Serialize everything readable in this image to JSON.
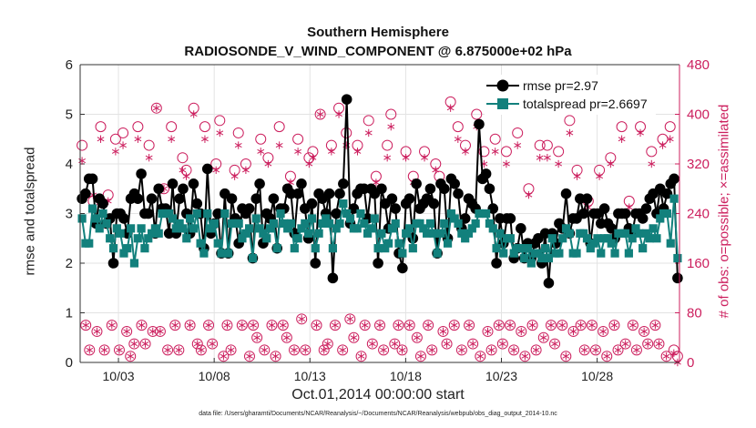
{
  "chart_data": {
    "type": "line",
    "title": "Southern Hemisphere",
    "subtitle": "RADIOSONDE_V_WIND_COMPONENT @ 6.875000e+02 hPa",
    "xlabel": "Oct.01,2014 00:00:00 start",
    "ylabel_left": "rmse and totalspread",
    "ylabel_right": "# of obs: o=possible; ×=assimilated",
    "footnote": "data file: /Users/gharamti/Documents/NCAR/Reanalysis/~/Documents/NCAR/Reanalysis/webpub/obs_diag_output_2014-10.nc",
    "x_ticks": [
      "10/03",
      "10/08",
      "10/13",
      "10/18",
      "10/23",
      "10/28"
    ],
    "x_tick_days": [
      3,
      8,
      13,
      18,
      23,
      28
    ],
    "xlim": [
      1,
      32.3
    ],
    "ylim_left": [
      0,
      6
    ],
    "yticks_left": [
      0,
      1,
      2,
      3,
      4,
      5,
      6
    ],
    "ylim_right": [
      0,
      480
    ],
    "yticks_right": [
      0,
      80,
      160,
      240,
      320,
      400,
      480
    ],
    "series": [
      {
        "name": "rmse pr=2.97",
        "axis": "left",
        "color": "#000000",
        "marker": "circle",
        "values": [
          3.3,
          3.4,
          3.7,
          3.7,
          2.8,
          3.3,
          3.2,
          2.8,
          2.9,
          2.0,
          3.0,
          3.0,
          2.9,
          2.6,
          3.3,
          3.4,
          3.3,
          3.8,
          3.0,
          3.0,
          3.3,
          2.6,
          3.5,
          3.1,
          3.1,
          2.6,
          3.6,
          2.6,
          3.3,
          3.5,
          3.0,
          2.6,
          3.6,
          3.2,
          3.0,
          2.3,
          3.9,
          2.6,
          2.8,
          3.0,
          2.2,
          3.4,
          2.2,
          3.3,
          2.9,
          2.4,
          3.1,
          3.0,
          3.1,
          2.1,
          3.3,
          3.6,
          2.4,
          3.0,
          2.9,
          3.3,
          2.3,
          3.1,
          3.1,
          3.5,
          3.4,
          2.6,
          3.4,
          3.6,
          3.1,
          2.5,
          3.2,
          2.0,
          3.4,
          3.3,
          3.0,
          3.4,
          1.7,
          3.0,
          3.4,
          3.6,
          5.3,
          2.8,
          3.1,
          3.4,
          3.5,
          3.5,
          2.9,
          3.5,
          3.4,
          2.0,
          3.5,
          3.2,
          2.7,
          3.3,
          3.1,
          2.2,
          1.9,
          3.2,
          3.3,
          2.5,
          3.6,
          3.1,
          3.2,
          3.3,
          3.5,
          3.2,
          2.2,
          3.6,
          3.5,
          2.5,
          3.7,
          3.6,
          3.4,
          2.7,
          2.9,
          3.3,
          3.2,
          3.1,
          4.8,
          3.7,
          3.8,
          3.5,
          3.1,
          2.0,
          2.9,
          2.4,
          2.9,
          2.9,
          2.1,
          2.3,
          2.7,
          2.1,
          2.4,
          2.1,
          2.4,
          2.5,
          2.0,
          2.6,
          1.6,
          2.6,
          2.4,
          2.8,
          2.7,
          3.4,
          2.6,
          2.9,
          2.9,
          3.3,
          3.0,
          3.3,
          2.4,
          3.0,
          3.0,
          2.8,
          3.1,
          2.8,
          2.7,
          2.5,
          3.0,
          3.0,
          3.0,
          2.7,
          2.6,
          3.0,
          3.0,
          2.9,
          3.1,
          3.3,
          3.4,
          3.0,
          3.5,
          3.1,
          3.4,
          3.6,
          3.7,
          1.7
        ]
      },
      {
        "name": "totalspread pr=2.6697",
        "axis": "left",
        "color": "#12807c",
        "marker": "square",
        "values": [
          2.9,
          2.4,
          2.4,
          3.1,
          2.9,
          2.7,
          3.0,
          2.8,
          2.5,
          2.3,
          2.7,
          2.6,
          2.2,
          2.3,
          2.7,
          2.0,
          2.5,
          2.7,
          2.3,
          2.5,
          2.6,
          2.7,
          2.6,
          3.0,
          3.0,
          3.0,
          2.9,
          2.7,
          2.8,
          2.7,
          2.5,
          2.9,
          2.7,
          3.0,
          2.4,
          2.2,
          3.0,
          2.7,
          2.8,
          2.4,
          2.2,
          3.0,
          2.2,
          2.8,
          2.8,
          2.8,
          2.5,
          2.6,
          2.7,
          2.1,
          2.9,
          2.7,
          2.6,
          2.5,
          2.7,
          2.8,
          2.3,
          3.0,
          2.8,
          2.7,
          2.8,
          2.3,
          2.5,
          2.7,
          2.8,
          2.6,
          2.9,
          2.3,
          2.6,
          2.8,
          2.9,
          2.8,
          2.3,
          2.7,
          2.8,
          3.2,
          3.0,
          2.9,
          2.7,
          2.7,
          3.0,
          2.8,
          2.6,
          2.7,
          2.9,
          2.3,
          2.6,
          2.3,
          2.4,
          2.7,
          2.8,
          2.4,
          2.2,
          2.6,
          2.7,
          2.3,
          2.8,
          2.8,
          2.7,
          2.6,
          2.8,
          2.6,
          2.2,
          2.6,
          2.8,
          2.4,
          3.0,
          2.9,
          2.8,
          2.6,
          2.5,
          2.6,
          2.7,
          2.8,
          3.0,
          3.0,
          3.0,
          2.8,
          2.7,
          2.3,
          2.6,
          2.2,
          2.5,
          2.5,
          2.2,
          2.3,
          2.3,
          2.1,
          2.3,
          2.0,
          2.2,
          2.2,
          2.1,
          2.3,
          2.1,
          2.5,
          2.2,
          2.2,
          2.5,
          2.7,
          2.6,
          2.2,
          2.2,
          2.6,
          2.6,
          2.5,
          2.3,
          2.4,
          2.5,
          2.2,
          2.5,
          2.5,
          2.4,
          2.2,
          2.6,
          2.6,
          2.6,
          2.2,
          2.5,
          2.7,
          2.6,
          2.3,
          2.6,
          2.5,
          2.7,
          2.5,
          2.9,
          3.0,
          3.0,
          2.4,
          3.3,
          2.1
        ]
      },
      {
        "name": "possible",
        "axis": "right",
        "color": "#cc1f5e",
        "marker": "open-circle",
        "values": [
          350,
          60,
          20,
          260,
          50,
          380,
          20,
          270,
          60,
          360,
          20,
          370,
          50,
          10,
          30,
          380,
          60,
          30,
          350,
          50,
          410,
          50,
          280,
          20,
          380,
          60,
          20,
          330,
          310,
          60,
          410,
          30,
          20,
          380,
          60,
          30,
          320,
          390,
          10,
          60,
          20,
          310,
          370,
          60,
          320,
          10,
          60,
          40,
          360,
          20,
          330,
          60,
          10,
          380,
          60,
          40,
          300,
          20,
          360,
          70,
          20,
          330,
          340,
          60,
          400,
          20,
          30,
          350,
          60,
          410,
          20,
          370,
          70,
          40,
          350,
          10,
          60,
          390,
          30,
          300,
          60,
          20,
          350,
          400,
          30,
          60,
          20,
          340,
          60,
          300,
          40,
          10,
          340,
          60,
          20,
          320,
          300,
          50,
          30,
          420,
          60,
          380,
          20,
          350,
          60,
          30,
          400,
          10,
          340,
          50,
          20,
          360,
          60,
          30,
          340,
          60,
          20,
          370,
          50,
          10,
          280,
          60,
          20,
          350,
          40,
          350,
          60,
          30,
          340,
          60,
          10,
          390,
          50,
          310,
          60,
          20,
          260,
          60,
          20,
          310,
          50,
          10,
          330,
          60,
          20,
          380,
          30,
          260,
          60,
          20,
          380,
          50,
          30,
          340,
          60,
          30,
          360,
          10,
          380,
          20,
          10
        ]
      },
      {
        "name": "assimilated",
        "axis": "right",
        "color": "#cc1f5e",
        "marker": "asterisk",
        "values": [
          325,
          60,
          20,
          270,
          50,
          360,
          20,
          260,
          60,
          340,
          20,
          350,
          50,
          10,
          30,
          360,
          60,
          30,
          330,
          50,
          410,
          50,
          280,
          20,
          360,
          60,
          20,
          310,
          300,
          60,
          400,
          30,
          20,
          360,
          60,
          30,
          310,
          370,
          10,
          60,
          20,
          300,
          350,
          60,
          310,
          10,
          60,
          40,
          340,
          20,
          320,
          60,
          10,
          350,
          60,
          40,
          290,
          20,
          340,
          70,
          20,
          320,
          330,
          60,
          400,
          20,
          30,
          340,
          60,
          400,
          20,
          350,
          70,
          40,
          340,
          10,
          60,
          370,
          30,
          290,
          60,
          20,
          330,
          380,
          30,
          60,
          20,
          330,
          60,
          290,
          40,
          10,
          330,
          60,
          20,
          310,
          290,
          50,
          30,
          410,
          60,
          360,
          20,
          340,
          60,
          30,
          380,
          10,
          320,
          50,
          20,
          340,
          60,
          30,
          320,
          60,
          20,
          350,
          50,
          10,
          270,
          60,
          20,
          330,
          40,
          330,
          60,
          30,
          320,
          60,
          10,
          370,
          50,
          300,
          60,
          20,
          250,
          60,
          20,
          300,
          50,
          10,
          320,
          60,
          20,
          360,
          30,
          250,
          60,
          20,
          370,
          50,
          30,
          320,
          60,
          30,
          350,
          10,
          360,
          15,
          0
        ]
      }
    ]
  }
}
